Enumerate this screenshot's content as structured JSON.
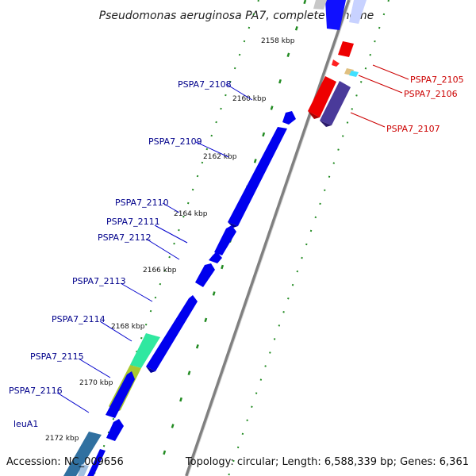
{
  "title": "Pseudomonas aeruginosa PA7, complete genome",
  "footer": {
    "accession": "Accession: NC_009656",
    "topology": "Topology: circular; Length: 6,588,339 bp; Genes: 6,361"
  },
  "colors": {
    "forward_gene": "#0000ff",
    "reverse_gene": "#ff0000",
    "forward_label": "#00008b",
    "reverse_label": "#cc0000",
    "backbone": "#808080",
    "tick": "#228b22"
  },
  "kbp_ticks": [
    {
      "label": "2158 kbp"
    },
    {
      "label": "2160 kbp"
    },
    {
      "label": "2162 kbp"
    },
    {
      "label": "2164 kbp"
    },
    {
      "label": "2166 kbp"
    },
    {
      "label": "2168 kbp"
    },
    {
      "label": "2170 kbp"
    },
    {
      "label": "2172 kbp"
    }
  ],
  "forward_genes": [
    {
      "label": "PSPA7_2108"
    },
    {
      "label": "PSPA7_2109"
    },
    {
      "label": "PSPA7_2110"
    },
    {
      "label": "PSPA7_2111"
    },
    {
      "label": "PSPA7_2112"
    },
    {
      "label": "PSPA7_2113"
    },
    {
      "label": "PSPA7_2114"
    },
    {
      "label": "PSPA7_2115"
    },
    {
      "label": "PSPA7_2116"
    },
    {
      "label": "leuA1"
    }
  ],
  "reverse_genes": [
    {
      "label": "PSPA7_2105"
    },
    {
      "label": "PSPA7_2106"
    },
    {
      "label": "PSPA7_2107"
    }
  ]
}
